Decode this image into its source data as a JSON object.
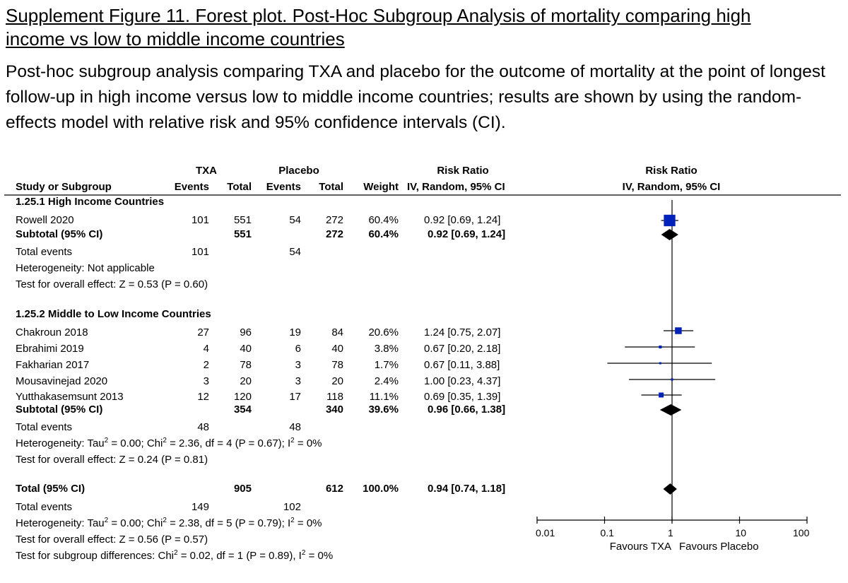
{
  "figure": {
    "title_line1": "Supplement Figure 11. Forest plot. Post-Hoc Subgroup Analysis of mortality comparing high",
    "title_line2": "income vs low to middle income countries",
    "description": "Post-hoc subgroup analysis comparing TXA and placebo for the outcome of mortality at the point of longest follow-up in high income versus low to middle income countries; results are shown by using the random-effects model with relative risk and 95% confidence intervals (CI)."
  },
  "headers": {
    "txa": "TXA",
    "placebo": "Placebo",
    "risk_ratio": "Risk Ratio",
    "risk_ratio_plot": "Risk Ratio",
    "study": "Study or Subgroup",
    "events1": "Events",
    "total1": "Total",
    "events2": "Events",
    "total2": "Total",
    "weight": "Weight",
    "method": "IV, Random, 95% CI",
    "method_plot": "IV, Random, 95% CI"
  },
  "groups": [
    {
      "title": "1.25.1 High Income Countries",
      "studies": [
        {
          "name": "Rowell 2020",
          "e1": "101",
          "n1": "551",
          "e2": "54",
          "n2": "272",
          "weight": "60.4%",
          "ci_text": "0.92 [0.69, 1.24]",
          "rr": 0.92,
          "lo": 0.69,
          "hi": 1.24
        }
      ],
      "subtotal": {
        "label": "Subtotal (95% CI)",
        "n1": "551",
        "n2": "272",
        "weight": "60.4%",
        "ci_text": "0.92 [0.69, 1.24]",
        "rr": 0.92,
        "lo": 0.69,
        "hi": 1.24
      },
      "total_events": {
        "label": "Total events",
        "e1": "101",
        "e2": "54"
      },
      "heterogeneity": "Heterogeneity: Not applicable",
      "overall": "Test for overall effect: Z = 0.53 (P = 0.60)"
    },
    {
      "title": "1.25.2 Middle to Low Income Countries",
      "studies": [
        {
          "name": "Chakroun 2018",
          "e1": "27",
          "n1": "96",
          "e2": "19",
          "n2": "84",
          "weight": "20.6%",
          "ci_text": "1.24 [0.75, 2.07]",
          "rr": 1.24,
          "lo": 0.75,
          "hi": 2.07
        },
        {
          "name": "Ebrahimi 2019",
          "e1": "4",
          "n1": "40",
          "e2": "6",
          "n2": "40",
          "weight": "3.8%",
          "ci_text": "0.67 [0.20, 2.18]",
          "rr": 0.67,
          "lo": 0.2,
          "hi": 2.18
        },
        {
          "name": "Fakharian 2017",
          "e1": "2",
          "n1": "78",
          "e2": "3",
          "n2": "78",
          "weight": "1.7%",
          "ci_text": "0.67 [0.11, 3.88]",
          "rr": 0.67,
          "lo": 0.11,
          "hi": 3.88
        },
        {
          "name": "Mousavinejad 2020",
          "e1": "3",
          "n1": "20",
          "e2": "3",
          "n2": "20",
          "weight": "2.4%",
          "ci_text": "1.00 [0.23, 4.37]",
          "rr": 1.0,
          "lo": 0.23,
          "hi": 4.37
        },
        {
          "name": "Yutthakasemsunt 2013",
          "e1": "12",
          "n1": "120",
          "e2": "17",
          "n2": "118",
          "weight": "11.1%",
          "ci_text": "0.69 [0.35, 1.39]",
          "rr": 0.69,
          "lo": 0.35,
          "hi": 1.39
        }
      ],
      "subtotal": {
        "label": "Subtotal (95% CI)",
        "n1": "354",
        "n2": "340",
        "weight": "39.6%",
        "ci_text": "0.96 [0.66, 1.38]",
        "rr": 0.96,
        "lo": 0.66,
        "hi": 1.38
      },
      "total_events": {
        "label": "Total events",
        "e1": "48",
        "e2": "48"
      },
      "heterogeneity": {
        "prefix": "Heterogeneity: Tau",
        "sup1": "2",
        "mid1": " = 0.00; Chi",
        "sup2": "2",
        "mid2": " = 2.36, df = 4 (P = 0.67); I",
        "sup3": "2",
        "suffix": " = 0%"
      },
      "overall": "Test for overall effect: Z = 0.24 (P = 0.81)"
    }
  ],
  "total": {
    "label": "Total (95% CI)",
    "n1": "905",
    "n2": "612",
    "weight": "100.0%",
    "ci_text": "0.94 [0.74, 1.18]",
    "rr": 0.94,
    "lo": 0.74,
    "hi": 1.18,
    "total_events": {
      "label": "Total events",
      "e1": "149",
      "e2": "102"
    },
    "heterogeneity": {
      "prefix": "Heterogeneity: Tau",
      "sup1": "2",
      "mid1": " = 0.00; Chi",
      "sup2": "2",
      "mid2": " = 2.38, df = 5 (P = 0.79); I",
      "sup3": "2",
      "suffix": " = 0%"
    },
    "overall": "Test for overall effect: Z = 0.56 (P = 0.57)",
    "subgroup_diff": {
      "prefix": "Test for subgroup differences: Chi",
      "sup1": "2",
      "mid1": " = 0.02, df = 1 (P = 0.89), I",
      "sup2": "2",
      "suffix": " = 0%"
    }
  },
  "axis": {
    "ticks": [
      "0.01",
      "0.1",
      "1",
      "10",
      "100"
    ],
    "favours_left": "Favours TXA",
    "favours_right": "Favours Placebo"
  },
  "colors": {
    "study_marker": "#0022bb",
    "diamond": "#000000"
  },
  "chart_data": {
    "type": "forest",
    "title": "Risk Ratio IV, Random, 95% CI",
    "scale": "log",
    "xlim": [
      0.01,
      100
    ],
    "xticks": [
      0.01,
      0.1,
      1,
      10,
      100
    ],
    "xlabel_left": "Favours TXA",
    "xlabel_right": "Favours Placebo",
    "studies": [
      {
        "name": "Rowell 2020",
        "rr": 0.92,
        "lo": 0.69,
        "hi": 1.24,
        "weight": 60.4
      },
      {
        "name": "Chakroun 2018",
        "rr": 1.24,
        "lo": 0.75,
        "hi": 2.07,
        "weight": 20.6
      },
      {
        "name": "Ebrahimi 2019",
        "rr": 0.67,
        "lo": 0.2,
        "hi": 2.18,
        "weight": 3.8
      },
      {
        "name": "Fakharian 2017",
        "rr": 0.67,
        "lo": 0.11,
        "hi": 3.88,
        "weight": 1.7
      },
      {
        "name": "Mousavinejad 2020",
        "rr": 1.0,
        "lo": 0.23,
        "hi": 4.37,
        "weight": 2.4
      },
      {
        "name": "Yutthakasemsunt 2013",
        "rr": 0.69,
        "lo": 0.35,
        "hi": 1.39,
        "weight": 11.1
      }
    ],
    "pooled": [
      {
        "name": "Subtotal High Income",
        "rr": 0.92,
        "lo": 0.69,
        "hi": 1.24
      },
      {
        "name": "Subtotal Middle to Low Income",
        "rr": 0.96,
        "lo": 0.66,
        "hi": 1.38
      },
      {
        "name": "Total",
        "rr": 0.94,
        "lo": 0.74,
        "hi": 1.18
      }
    ]
  }
}
